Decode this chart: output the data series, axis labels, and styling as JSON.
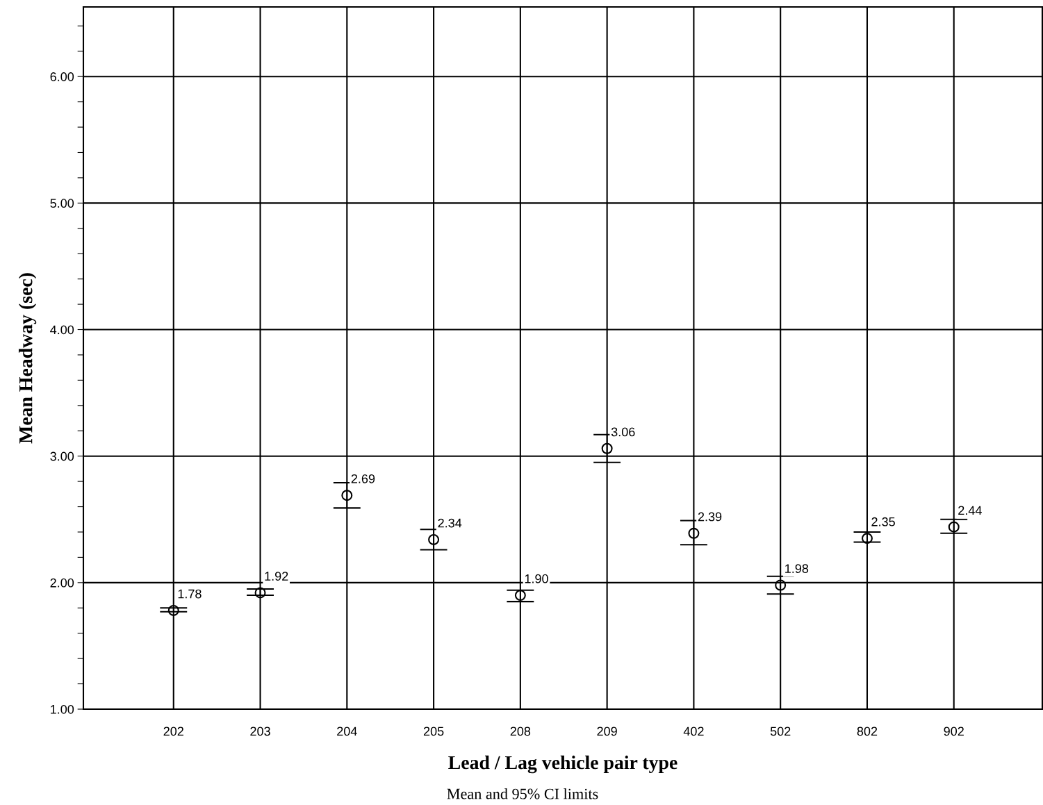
{
  "chart_data": {
    "type": "scatter",
    "xlabel": "Lead / Lag vehicle pair type",
    "ylabel": "Mean Headway (sec)",
    "annotations": [
      "Mean and 95% CI limits"
    ],
    "categories": [
      "202",
      "203",
      "204",
      "205",
      "208",
      "209",
      "402",
      "502",
      "802",
      "902"
    ],
    "values": [
      1.78,
      1.92,
      2.69,
      2.34,
      1.9,
      3.06,
      2.39,
      1.98,
      2.35,
      2.44
    ],
    "value_labels": [
      "1.78",
      "1.92",
      "2.69",
      "2.34",
      "1.90",
      "3.06",
      "2.39",
      "1.98",
      "2.35",
      "2.44"
    ],
    "errors": [
      [
        1.77,
        1.8
      ],
      [
        1.9,
        1.95
      ],
      [
        2.59,
        2.79
      ],
      [
        2.26,
        2.42
      ],
      [
        1.85,
        1.94
      ],
      [
        2.95,
        3.17
      ],
      [
        2.3,
        2.49
      ],
      [
        1.91,
        2.05
      ],
      [
        2.32,
        2.4
      ],
      [
        2.39,
        2.5
      ]
    ],
    "color": "#000000",
    "marker": "circle",
    "ylim": [
      1.0,
      6.55
    ],
    "yticks": [
      {
        "value": 1.0,
        "label": "1.00"
      },
      {
        "value": 1.2,
        "label": null
      },
      {
        "value": 1.4,
        "label": null
      },
      {
        "value": 1.6,
        "label": null
      },
      {
        "value": 1.8,
        "label": null
      },
      {
        "value": 2.0,
        "label": "2.00"
      },
      {
        "value": 2.2,
        "label": null
      },
      {
        "value": 2.4,
        "label": null
      },
      {
        "value": 2.6,
        "label": null
      },
      {
        "value": 2.8,
        "label": null
      },
      {
        "value": 3.0,
        "label": "3.00"
      },
      {
        "value": 3.2,
        "label": null
      },
      {
        "value": 3.4,
        "label": null
      },
      {
        "value": 3.6,
        "label": null
      },
      {
        "value": 3.8,
        "label": null
      },
      {
        "value": 4.0,
        "label": "4.00"
      },
      {
        "value": 4.2,
        "label": null
      },
      {
        "value": 4.4,
        "label": null
      },
      {
        "value": 4.6,
        "label": null
      },
      {
        "value": 4.8,
        "label": null
      },
      {
        "value": 5.0,
        "label": "5.00"
      },
      {
        "value": 5.2,
        "label": null
      },
      {
        "value": 5.4,
        "label": null
      },
      {
        "value": 5.6,
        "label": null
      },
      {
        "value": 5.8,
        "label": null
      },
      {
        "value": 6.0,
        "label": "6.00"
      },
      {
        "value": 6.2,
        "label": null
      },
      {
        "value": 6.4,
        "label": null
      }
    ],
    "grid": true
  }
}
